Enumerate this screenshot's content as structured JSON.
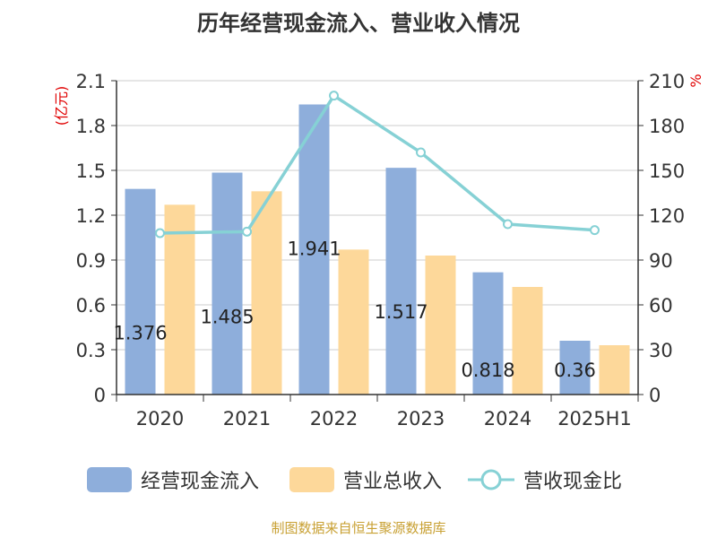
{
  "title": "历年经营现金流入、营业收入情况",
  "source": "制图数据来自恒生聚源数据库",
  "colors": {
    "cash_inflow": "#8eaedb",
    "revenue": "#fdd89a",
    "ratio": "#86d1d5",
    "grid": "#cccccc",
    "axis": "#333333",
    "unit_label": "#e00000"
  },
  "chart_data": {
    "type": "bar",
    "title": "历年经营现金流入、营业收入情况",
    "categories": [
      "2020",
      "2021",
      "2022",
      "2023",
      "2024",
      "2025H1"
    ],
    "y_left_label": "(亿元)",
    "y_right_label": "%",
    "y_left_range": [
      0,
      2.1
    ],
    "y_right_range": [
      0,
      210
    ],
    "y_left_ticks": [
      "0",
      "0.3",
      "0.6",
      "0.9",
      "1.2",
      "1.5",
      "1.8",
      "2.1"
    ],
    "y_right_ticks": [
      "0",
      "30",
      "60",
      "90",
      "120",
      "150",
      "180",
      "210"
    ],
    "grid": true,
    "legend_position": "bottom",
    "series": [
      {
        "name": "经营现金流入",
        "type": "bar",
        "axis": "left",
        "values": [
          1.376,
          1.485,
          1.941,
          1.517,
          0.818,
          0.36
        ],
        "data_labels": [
          "1.376",
          "1.485",
          "1.941",
          "1.517",
          "0.818",
          "0.36"
        ]
      },
      {
        "name": "营业总收入",
        "type": "bar",
        "axis": "left",
        "values": [
          1.27,
          1.36,
          0.97,
          0.93,
          0.72,
          0.33
        ]
      },
      {
        "name": "营收现金比",
        "type": "line",
        "axis": "right",
        "values": [
          108,
          109,
          200,
          162,
          114,
          110
        ]
      }
    ]
  }
}
